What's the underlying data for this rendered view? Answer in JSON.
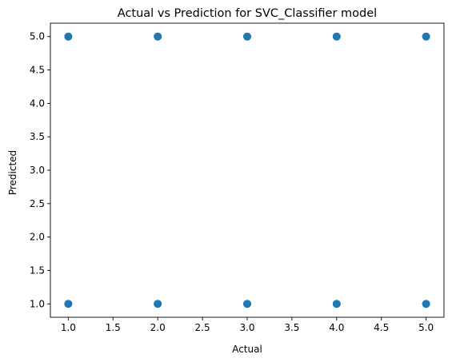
{
  "chart_data": {
    "type": "scatter",
    "title": "Actual vs Prediction for SVC_Classifier model",
    "xlabel": "Actual",
    "ylabel": "Predicted",
    "xlim": [
      0.8,
      5.2
    ],
    "ylim": [
      0.8,
      5.2
    ],
    "xticks": [
      "1.0",
      "1.5",
      "2.0",
      "2.5",
      "3.0",
      "3.5",
      "4.0",
      "4.5",
      "5.0"
    ],
    "yticks": [
      "1.0",
      "1.5",
      "2.0",
      "2.5",
      "3.0",
      "3.5",
      "4.0",
      "4.5",
      "5.0"
    ],
    "grid": false,
    "marker_color": "#1f77b4",
    "points": [
      {
        "x": 1,
        "y": 5
      },
      {
        "x": 2,
        "y": 5
      },
      {
        "x": 3,
        "y": 5
      },
      {
        "x": 4,
        "y": 5
      },
      {
        "x": 5,
        "y": 5
      },
      {
        "x": 1,
        "y": 1
      },
      {
        "x": 2,
        "y": 1
      },
      {
        "x": 3,
        "y": 1
      },
      {
        "x": 4,
        "y": 1
      },
      {
        "x": 5,
        "y": 1
      }
    ]
  }
}
